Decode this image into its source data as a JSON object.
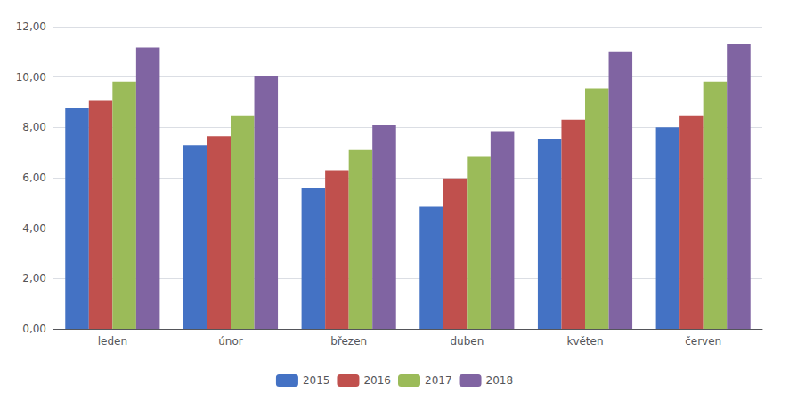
{
  "chart_data": {
    "type": "bar",
    "categories": [
      "leden",
      "únor",
      "březen",
      "duben",
      "květen",
      "červen"
    ],
    "series": [
      {
        "name": "2015",
        "color": "#4472C4",
        "values": [
          8.75,
          7.3,
          5.6,
          4.85,
          7.55,
          8.0
        ]
      },
      {
        "name": "2016",
        "color": "#C0504D",
        "values": [
          9.05,
          7.65,
          6.3,
          5.97,
          8.3,
          8.48
        ]
      },
      {
        "name": "2017",
        "color": "#9BBB59",
        "values": [
          9.82,
          8.48,
          7.1,
          6.83,
          9.55,
          9.82
        ]
      },
      {
        "name": "2018",
        "color": "#8064A2",
        "values": [
          11.17,
          10.02,
          8.08,
          7.85,
          11.02,
          11.33
        ]
      }
    ],
    "ylim": [
      0,
      12
    ],
    "yticks": [
      {
        "value": 0,
        "label": "0,00"
      },
      {
        "value": 2,
        "label": "2,00"
      },
      {
        "value": 4,
        "label": "4,00"
      },
      {
        "value": 6,
        "label": "6,00"
      },
      {
        "value": 8,
        "label": "8,00"
      },
      {
        "value": 10,
        "label": "10,00"
      },
      {
        "value": 12,
        "label": "12,00"
      }
    ],
    "grid": true,
    "legend": "bottom"
  }
}
